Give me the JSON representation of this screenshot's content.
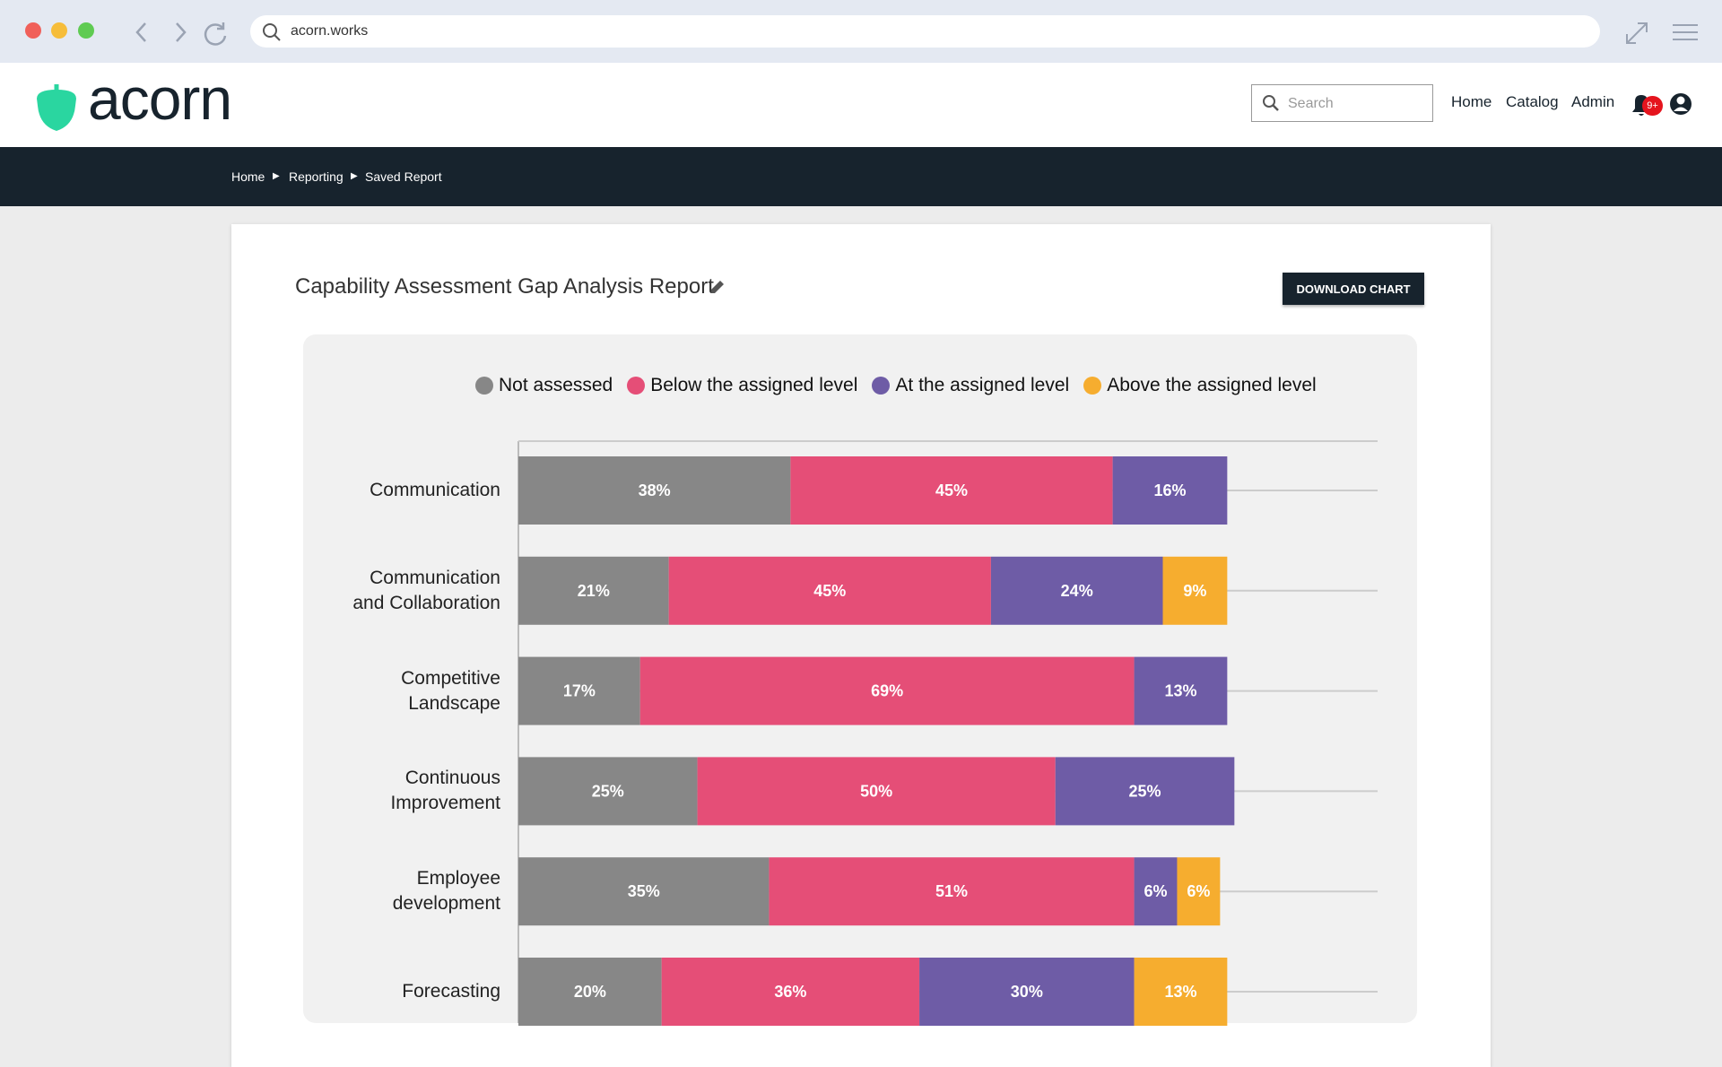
{
  "browser": {
    "url": "acorn.works"
  },
  "header": {
    "logo": "acorn",
    "search_placeholder": "Search",
    "nav": [
      "Home",
      "Catalog",
      "Admin"
    ],
    "notification_badge": "9+"
  },
  "breadcrumb": [
    "Home",
    "Reporting",
    "Saved Report"
  ],
  "report": {
    "title": "Capability Assessment Gap Analysis Report",
    "button": "DOWNLOAD CHART"
  },
  "chart_data": {
    "type": "stacked_barh",
    "categories": [
      "Communication",
      "Communication and Collaboration",
      "Competitive Landscape",
      "Continuous Improvement",
      "Employee development",
      "Forecasting"
    ],
    "series": [
      {
        "name": "Not assessed",
        "color": "#878787",
        "values": [
          38,
          21,
          17,
          25,
          35,
          20
        ],
        "value_labels": [
          "38%",
          "21%",
          "17%",
          "25%",
          "35%",
          "20%"
        ]
      },
      {
        "name": "Below the assigned level",
        "color": "#e54e77",
        "values": [
          45,
          45,
          69,
          50,
          51,
          36
        ],
        "value_labels": [
          "45%",
          "45%",
          "69%",
          "50%",
          "51%",
          "36%"
        ]
      },
      {
        "name": "At the assigned level",
        "color": "#6e5ca6",
        "values": [
          16,
          24,
          13,
          25,
          6,
          30
        ],
        "value_labels": [
          "16%",
          "24%",
          "13%",
          "25%",
          "6%",
          "30%"
        ]
      },
      {
        "name": "Above the assigned level",
        "color": "#f6ad2f",
        "values": [
          null,
          9,
          null,
          null,
          6,
          13
        ],
        "value_labels": [
          null,
          "9%",
          null,
          null,
          "6%",
          "13%"
        ]
      }
    ],
    "xlim": [
      0,
      120
    ],
    "legend": "top"
  }
}
